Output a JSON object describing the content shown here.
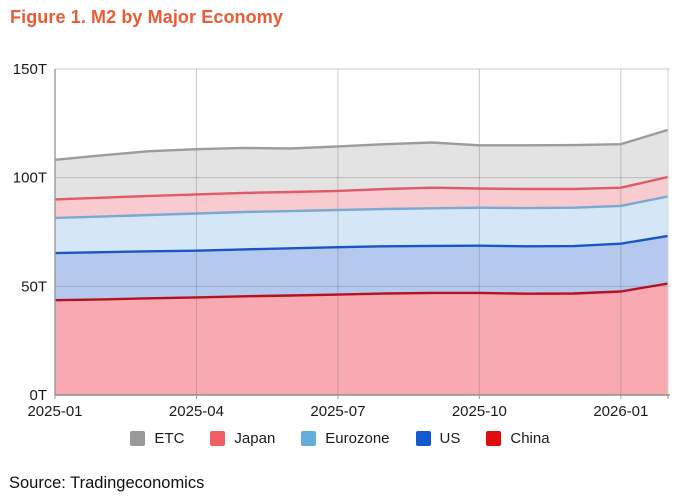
{
  "figure": {
    "title": "Figure 1. M2 by Major Economy",
    "title_color": "#EC5A36",
    "source_note": "Source: Tradingeconomics"
  },
  "chart_data": {
    "type": "area",
    "stacked": true,
    "unit": "T",
    "grid": true,
    "legend_position": "bottom",
    "ylim": [
      0,
      150
    ],
    "x": [
      "2025-01",
      "2025-02",
      "2025-03",
      "2025-04",
      "2025-05",
      "2025-06",
      "2025-07",
      "2025-08",
      "2025-09",
      "2025-10",
      "2025-11",
      "2025-12",
      "2026-01",
      "2026-02"
    ],
    "x_tick_indices": [
      0,
      3,
      6,
      9,
      12
    ],
    "x_tick_labels": [
      "2025-01",
      "2025-04",
      "2025-07",
      "2025-10",
      "2026-01"
    ],
    "y_ticks": [
      {
        "value": 0,
        "label": "0T"
      },
      {
        "value": 50,
        "label": "50T"
      },
      {
        "value": 100,
        "label": "100T"
      },
      {
        "value": 150,
        "label": "150T"
      }
    ],
    "series": [
      {
        "name": "China",
        "line_color": "#B5121F",
        "fill_color": "#F8A9B1",
        "stack_top_values": [
          43.6,
          44.0,
          44.5,
          44.9,
          45.4,
          45.8,
          46.2,
          46.7,
          47.0,
          47.0,
          46.6,
          46.7,
          47.6,
          51.3
        ]
      },
      {
        "name": "US",
        "line_color": "#1A57C4",
        "fill_color": "#B5C8EE",
        "stack_top_values": [
          65.3,
          65.7,
          66.1,
          66.4,
          67.0,
          67.5,
          68.0,
          68.4,
          68.6,
          68.7,
          68.4,
          68.5,
          69.6,
          73.2
        ]
      },
      {
        "name": "Eurozone",
        "line_color": "#7BA9D0",
        "fill_color": "#D5E7F6",
        "stack_top_values": [
          81.5,
          82.1,
          82.8,
          83.5,
          84.2,
          84.6,
          85.1,
          85.6,
          85.9,
          86.2,
          86.0,
          86.2,
          87.0,
          91.4
        ]
      },
      {
        "name": "Japan",
        "line_color": "#E25B64",
        "fill_color": "#F8CBD0",
        "stack_top_values": [
          90.0,
          90.8,
          91.6,
          92.3,
          93.0,
          93.4,
          93.9,
          94.8,
          95.4,
          95.0,
          94.8,
          94.8,
          95.4,
          100.3
        ]
      },
      {
        "name": "ETC",
        "line_color": "#9C9C9C",
        "fill_color": "#E3E3E3",
        "stack_top_values": [
          108.2,
          110.3,
          112.2,
          113.1,
          113.7,
          113.4,
          114.4,
          115.4,
          116.2,
          114.9,
          114.9,
          115.0,
          115.4,
          122.0
        ]
      }
    ],
    "legend": [
      {
        "label": "ETC",
        "color": "#999999"
      },
      {
        "label": "Japan",
        "color": "#EF5F63"
      },
      {
        "label": "Eurozone",
        "color": "#63ACDE"
      },
      {
        "label": "US",
        "color": "#1458D0"
      },
      {
        "label": "China",
        "color": "#DF0B0F"
      }
    ]
  }
}
